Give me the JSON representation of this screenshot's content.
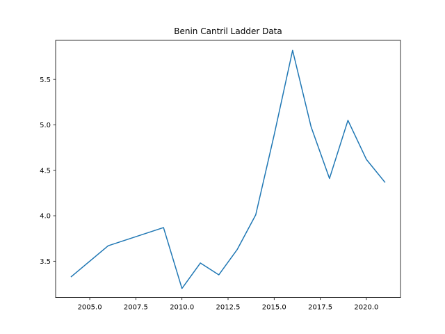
{
  "chart_data": {
    "type": "line",
    "title": "Benin Cantril Ladder Data",
    "xlabel": "",
    "ylabel": "",
    "xlim": [
      2003.15,
      2021.85
    ],
    "ylim": [
      3.1,
      5.93
    ],
    "x_ticks": [
      2005.0,
      2007.5,
      2010.0,
      2012.5,
      2015.0,
      2017.5,
      2020.0
    ],
    "x_tick_labels": [
      "2005.0",
      "2007.5",
      "2010.0",
      "2012.5",
      "2015.0",
      "2017.5",
      "2020.0"
    ],
    "y_ticks": [
      3.5,
      4.0,
      4.5,
      5.0,
      5.5
    ],
    "y_tick_labels": [
      "3.5",
      "4.0",
      "4.5",
      "5.0",
      "5.5"
    ],
    "grid": false,
    "series": [
      {
        "color": "#1f77b4",
        "x": [
          2004,
          2006,
          2009,
          2010,
          2011,
          2012,
          2013,
          2014,
          2015,
          2016,
          2017,
          2018,
          2019,
          2020,
          2021
        ],
        "y": [
          3.33,
          3.67,
          3.87,
          3.2,
          3.48,
          3.35,
          3.63,
          4.01,
          4.89,
          5.82,
          4.98,
          4.41,
          5.05,
          4.62,
          4.37
        ]
      }
    ]
  }
}
